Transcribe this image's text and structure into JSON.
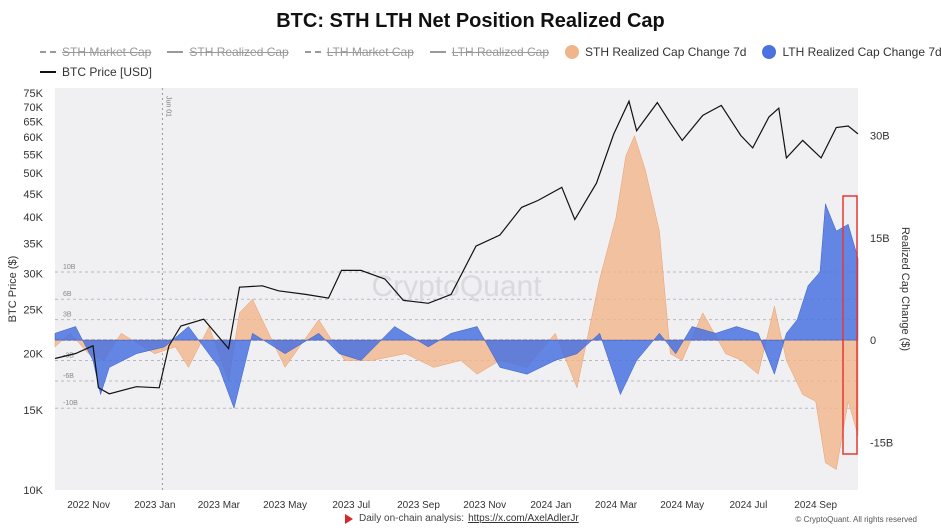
{
  "title": "BTC: STH LTH Net Position Realized Cap",
  "legend": [
    {
      "label": "STH Market Cap",
      "color": "#9a9a9a",
      "kind": "dash",
      "hidden": true
    },
    {
      "label": "STH Realized Cap",
      "color": "#9a9a9a",
      "kind": "solid",
      "hidden": true
    },
    {
      "label": "LTH Market Cap",
      "color": "#9a9a9a",
      "kind": "dash",
      "hidden": true
    },
    {
      "label": "LTH Realized Cap",
      "color": "#9a9a9a",
      "kind": "solid",
      "hidden": true
    },
    {
      "label": "STH Realized Cap Change 7d",
      "color": "#f2b589",
      "kind": "dot",
      "hidden": false
    },
    {
      "label": "LTH Realized Cap Change 7d",
      "color": "#4a72e0",
      "kind": "dot",
      "hidden": false
    },
    {
      "label": "BTC Price [USD]",
      "color": "#111111",
      "kind": "solid",
      "hidden": false
    }
  ],
  "footer": {
    "text": "Daily on-chain analysis:",
    "link": "https://x.com/AxelAdlerJr"
  },
  "copyright": "© CryptoQuant. All rights reserved",
  "watermark": "CryptoQuant",
  "colors": {
    "sth": "#f2b589",
    "lth": "#4a72e0",
    "price": "#111111",
    "highlight": "#e53935",
    "plot_bg": "#f0f0f2"
  },
  "chart_data": {
    "type": "line",
    "x_ticks": [
      "2022 Nov",
      "2023 Jan",
      "2023 Mar",
      "2023 May",
      "2023 Jul",
      "2023 Sep",
      "2023 Nov",
      "2024 Jan",
      "2024 Mar",
      "2024 May",
      "2024 Jul",
      "2024 Sep"
    ],
    "x_range": [
      "2022-10-01",
      "2024-10-10"
    ],
    "y_left": {
      "label": "BTC Price ($)",
      "scale": "log",
      "range": [
        10000,
        77000
      ],
      "ticks": [
        "10K",
        "15K",
        "20K",
        "25K",
        "30K",
        "35K",
        "40K",
        "45K",
        "50K",
        "55K",
        "60K",
        "65K",
        "70K",
        "75K"
      ]
    },
    "y_right": {
      "label": "Realized Cap Change ($)",
      "range": [
        -22,
        37
      ],
      "ticks": [
        "30B",
        "15B",
        "0",
        "-15B"
      ],
      "tick_values": [
        30,
        15,
        0,
        -15
      ]
    },
    "ref_lines": {
      "labels": [
        "10B",
        "6B",
        "3B",
        "-3B",
        "-6B",
        "-10B"
      ],
      "values": [
        10,
        6,
        3,
        -3,
        -6,
        -10
      ]
    },
    "annotation": "Jun 01",
    "series": [
      {
        "name": "BTC Price [USD]",
        "unit": "USD",
        "x": [
          "2022-10-01",
          "2022-10-20",
          "2022-11-05",
          "2022-11-10",
          "2022-11-20",
          "2022-12-15",
          "2023-01-05",
          "2023-01-14",
          "2023-01-25",
          "2023-02-15",
          "2023-03-10",
          "2023-03-20",
          "2023-04-10",
          "2023-04-25",
          "2023-05-20",
          "2023-06-10",
          "2023-06-22",
          "2023-07-10",
          "2023-08-01",
          "2023-08-18",
          "2023-09-10",
          "2023-10-01",
          "2023-10-24",
          "2023-11-15",
          "2023-12-05",
          "2023-12-20",
          "2024-01-11",
          "2024-01-23",
          "2024-02-12",
          "2024-02-28",
          "2024-03-13",
          "2024-03-20",
          "2024-04-08",
          "2024-04-20",
          "2024-05-01",
          "2024-05-20",
          "2024-06-06",
          "2024-06-24",
          "2024-07-05",
          "2024-07-20",
          "2024-07-29",
          "2024-08-05",
          "2024-08-20",
          "2024-09-06",
          "2024-09-20",
          "2024-10-01",
          "2024-10-10"
        ],
        "values": [
          19500,
          20000,
          20800,
          16800,
          16300,
          16900,
          16800,
          20800,
          23000,
          23800,
          20500,
          28000,
          28200,
          27500,
          27000,
          26500,
          30500,
          30500,
          29200,
          26200,
          25800,
          27000,
          34500,
          36500,
          42000,
          43500,
          46500,
          39500,
          47500,
          61000,
          72000,
          62000,
          71500,
          64500,
          59000,
          67000,
          70500,
          60500,
          56800,
          66500,
          69500,
          54000,
          59000,
          54000,
          63000,
          63500,
          61000
        ]
      },
      {
        "name": "STH Realized Cap Change 7d",
        "unit": "B USD",
        "x": [
          "2022-10-01",
          "2022-10-15",
          "2022-11-01",
          "2022-11-15",
          "2022-12-01",
          "2023-01-01",
          "2023-01-20",
          "2023-02-01",
          "2023-02-20",
          "2023-03-10",
          "2023-03-20",
          "2023-04-01",
          "2023-05-01",
          "2023-06-01",
          "2023-06-25",
          "2023-07-20",
          "2023-08-20",
          "2023-09-15",
          "2023-10-10",
          "2023-10-25",
          "2023-11-15",
          "2023-12-10",
          "2024-01-05",
          "2024-01-25",
          "2024-02-15",
          "2024-03-01",
          "2024-03-10",
          "2024-03-18",
          "2024-03-28",
          "2024-04-10",
          "2024-04-20",
          "2024-05-01",
          "2024-05-20",
          "2024-06-10",
          "2024-06-25",
          "2024-07-10",
          "2024-07-25",
          "2024-08-05",
          "2024-08-20",
          "2024-09-01",
          "2024-09-10",
          "2024-09-20",
          "2024-10-01",
          "2024-10-10"
        ],
        "values": [
          -1,
          1,
          -2,
          -3,
          1,
          -2,
          -1,
          -4,
          2,
          -6,
          4,
          6,
          -4,
          3,
          -3,
          -3,
          -2,
          -4,
          -3,
          -5,
          -3,
          -4,
          1,
          -7,
          9,
          18,
          27,
          30,
          25,
          16,
          -2,
          -3,
          4,
          -2,
          -3,
          -5,
          5,
          -3,
          -8,
          -9,
          -18,
          -19,
          -9,
          -14
        ]
      },
      {
        "name": "LTH Realized Cap Change 7d",
        "unit": "B USD",
        "x": [
          "2022-10-01",
          "2022-10-20",
          "2022-11-05",
          "2022-11-12",
          "2022-11-20",
          "2022-12-15",
          "2023-01-10",
          "2023-02-01",
          "2023-03-01",
          "2023-03-15",
          "2023-04-01",
          "2023-05-01",
          "2023-06-01",
          "2023-06-20",
          "2023-07-10",
          "2023-08-10",
          "2023-09-10",
          "2023-10-01",
          "2023-10-25",
          "2023-11-15",
          "2023-12-10",
          "2024-01-05",
          "2024-01-25",
          "2024-02-15",
          "2024-03-05",
          "2024-03-20",
          "2024-04-10",
          "2024-04-25",
          "2024-05-10",
          "2024-06-01",
          "2024-06-20",
          "2024-07-10",
          "2024-07-25",
          "2024-08-05",
          "2024-08-15",
          "2024-08-25",
          "2024-09-05",
          "2024-09-10",
          "2024-09-20",
          "2024-10-01",
          "2024-10-10"
        ],
        "values": [
          1,
          2,
          -3,
          -8,
          -4,
          -2,
          -1,
          2,
          -4,
          -10,
          1,
          -2,
          1,
          -2,
          -3,
          2,
          -1,
          1,
          2,
          -4,
          -5,
          -3,
          -2,
          1,
          -8,
          -3,
          1,
          -2,
          2,
          1,
          2,
          1,
          -5,
          1,
          3,
          8,
          10,
          20,
          16,
          17,
          12
        ]
      }
    ]
  }
}
